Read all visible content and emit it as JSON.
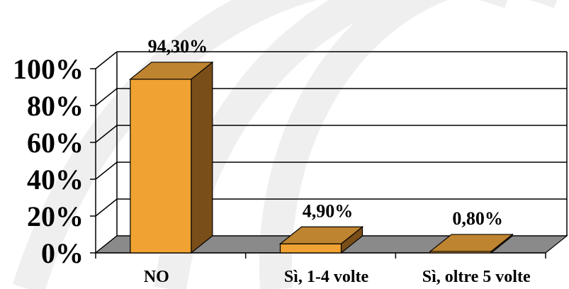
{
  "chart_data": {
    "type": "bar",
    "categories": [
      "NO",
      "Sì, 1-4 volte",
      "Sì, oltre 5 volte"
    ],
    "values": [
      94.3,
      4.9,
      0.8
    ],
    "data_labels": [
      "94,30%",
      "4,90%",
      "0,80%"
    ],
    "ylim": [
      0,
      100
    ],
    "yticks": [
      0,
      20,
      40,
      60,
      80,
      100
    ],
    "ytick_labels": [
      "0%",
      "20%",
      "40%",
      "60%",
      "80%",
      "100%"
    ],
    "title": "",
    "xlabel": "",
    "ylabel": "",
    "grid": true,
    "legend": "none",
    "colors": {
      "bar_front": "#F0A232",
      "bar_side": "#7A4E18",
      "bar_top": "#BE8430",
      "floor": "#8A8A8A",
      "watermark": "#EFEFEF"
    }
  }
}
